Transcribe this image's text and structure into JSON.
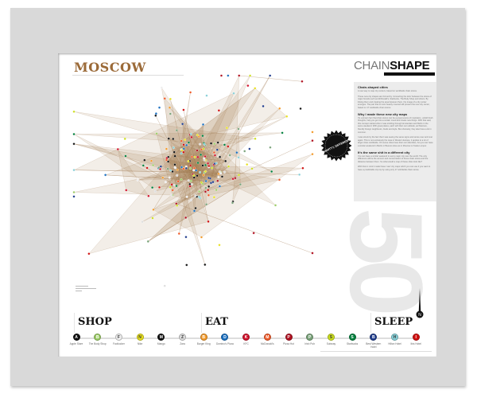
{
  "poster": {
    "city": "MOSCOW",
    "logo": {
      "thin": "CHAIN",
      "bold": "SHAPE"
    },
    "big_number": "50",
    "badge": "SAME SHITTY, DIFFERENT CITY",
    "sections": {
      "shop": "SHOP",
      "eat": "EAT",
      "sleep": "SLEEP"
    },
    "sidebar": [
      {
        "title": "Chain-shaped cities",
        "body": "A new way to map city centers, based on worldwide chain stores."
      },
      {
        "title": "",
        "body": "These new city shapes are formed by 'connecting the dots' between the stores of major brands such as McDonald's, Starbucks, The Body Shop and others. By linking them and creating the area between them, the image of a city center emerges. The part that is most heavily covered will present the new city center, based on 17 worldwide chain stores."
      },
      {
        "title": "Why I made these new city maps",
        "body": "It's a known fact that chain stores can be a great source of inspiration, unfold fresh thoughts, help you get into a certain mood and create new things. With that said, this concept started when I was strolling through Amsterdam and Berlin in the same weekend. With great places, each with their own attitude, architecture, friendly foreign neighbours, foods and style. But obviously, they also have a lot in common."
      },
      {
        "title": "",
        "body": "I was struck by the fact that I was seeing the same signs and stores over and over again. This is not exclusively the case in Western Europe, it applies to a lot of larger cities worldwide. Of course cities have their own identities, but you can have a similar weekend in Berlin or Buenos Aires as in Moscow or Kuala Lumpur."
      },
      {
        "title": "It's the same shit in a different city",
        "body": "You can have a similar weekend in every major city over the world. The only difference will be the amount and concentration of these chain stores and the distance between them. So what would a map of these cities look like?"
      },
      {
        "title": "",
        "body": "With that in mind I made these 'new' city maps which you can use if you want to have a predictable city trip by using only 17 worldwide chain stores."
      }
    ],
    "legend": [
      {
        "label": "Apple Store",
        "glyph": "A",
        "color": "#111111",
        "group": "shop"
      },
      {
        "label": "The Body Shop",
        "glyph": "B",
        "color": "#9ccc66",
        "group": "shop"
      },
      {
        "label": "Footlocker",
        "glyph": "F",
        "color": "#eeeeee",
        "group": "shop"
      },
      {
        "label": "Nike",
        "glyph": "N",
        "color": "#e8e020",
        "group": "shop"
      },
      {
        "label": "Mango",
        "glyph": "M",
        "color": "#111111",
        "group": "shop"
      },
      {
        "label": "Zara",
        "glyph": "Z",
        "color": "#dddddd",
        "group": "shop"
      },
      {
        "label": "Burger King",
        "glyph": "B",
        "color": "#f39a2a",
        "group": "eat"
      },
      {
        "label": "Domino's Pizza",
        "glyph": "D",
        "color": "#1a6fc0",
        "group": "eat"
      },
      {
        "label": "KFC",
        "glyph": "K",
        "color": "#d0102a",
        "group": "eat"
      },
      {
        "label": "McDonald's",
        "glyph": "M",
        "color": "#f05a28",
        "group": "eat"
      },
      {
        "label": "Pizza Hut",
        "glyph": "P",
        "color": "#b01020",
        "group": "eat"
      },
      {
        "label": "Irish Pub",
        "glyph": "P",
        "color": "#7aa37a",
        "group": "eat"
      },
      {
        "label": "Subway",
        "glyph": "S",
        "color": "#cde020",
        "group": "eat"
      },
      {
        "label": "Starbucks",
        "glyph": "S",
        "color": "#00803d",
        "group": "eat"
      },
      {
        "label": "Best Western Hotel",
        "glyph": "B",
        "color": "#1f3c8c",
        "group": "sleep"
      },
      {
        "label": "Hilton Hotel",
        "glyph": "H",
        "color": "#88d0d8",
        "group": "sleep"
      },
      {
        "label": "Ibis Hotel",
        "glyph": "I",
        "color": "#d01010",
        "group": "sleep"
      }
    ],
    "map_fill_color": "#a07850"
  }
}
